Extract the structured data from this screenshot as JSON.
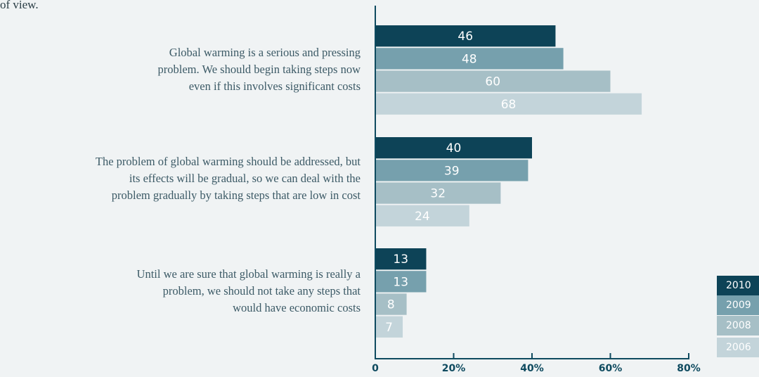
{
  "intro_text": "of view.",
  "chart_data": {
    "type": "bar",
    "orientation": "horizontal",
    "categories": [
      "Global warming is a serious and pressing problem. We should begin taking steps now even if this involves significant costs",
      "The problem of global warming should be addressed, but its effects will be gradual, so we can deal with the problem gradually by taking steps that are low in cost",
      "Until we are sure that global warming is really a problem, we should not take any steps that would have economic costs"
    ],
    "category_lines": [
      [
        "Global warming is a serious and pressing",
        "problem. We should begin taking steps now",
        "even if this involves significant costs"
      ],
      [
        "The problem of global warming should be addressed, but",
        "its effects will be gradual, so we can deal with the",
        "problem gradually by taking steps that are low in cost"
      ],
      [
        "Until we are sure that global warming is really a",
        "problem, we should not take any steps that",
        "would have economic costs"
      ]
    ],
    "series": [
      {
        "name": "2010",
        "values": [
          46,
          40,
          13
        ],
        "color": "#0d4357",
        "text_color": "#ffffff"
      },
      {
        "name": "2009",
        "values": [
          48,
          39,
          13
        ],
        "color": "#76a0ad",
        "text_color": "#ffffff"
      },
      {
        "name": "2008",
        "values": [
          60,
          32,
          8
        ],
        "color": "#a6bfc6",
        "text_color": "#ffffff"
      },
      {
        "name": "2006",
        "values": [
          68,
          24,
          7
        ],
        "color": "#c3d4da",
        "text_color": "#ffffff"
      }
    ],
    "x_ticks": [
      "0",
      "20%",
      "40%",
      "60%",
      "80%"
    ],
    "xlim": [
      0,
      80
    ],
    "legend_position": "bottom-right",
    "grid": false
  }
}
